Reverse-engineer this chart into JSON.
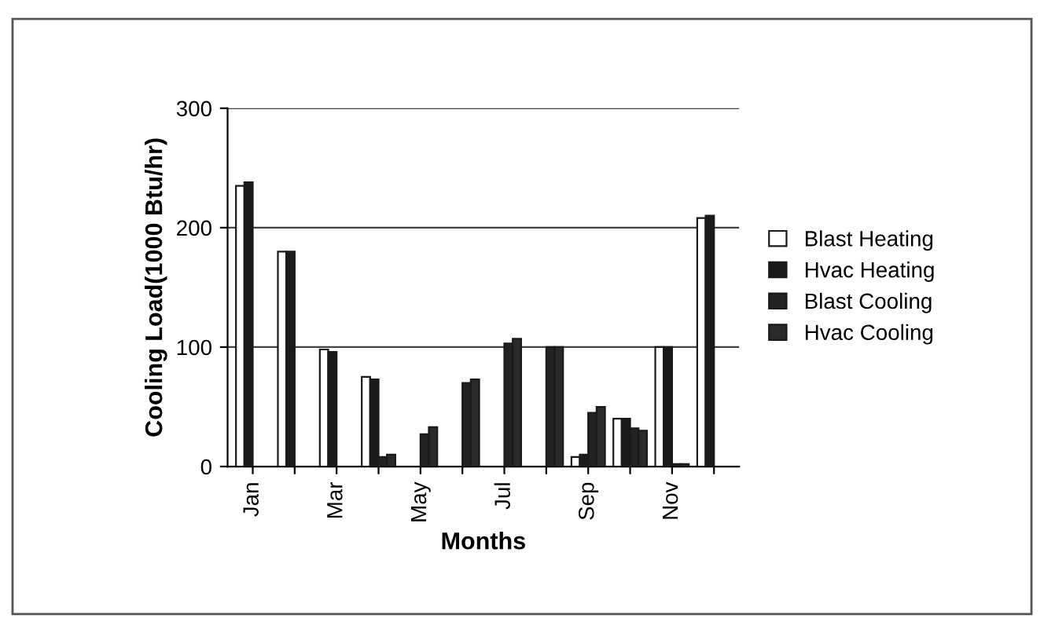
{
  "chart_data": {
    "type": "bar",
    "xlabel": "Months",
    "ylabel": "Cooling Load(1000 Btu/hr)",
    "categories": [
      "Jan",
      null,
      "Mar",
      null,
      "May",
      null,
      "Jul",
      null,
      "Sep",
      null,
      "Nov",
      null
    ],
    "series": [
      {
        "name": "Blast Heating",
        "color": "#ffffff",
        "values": [
          235,
          180,
          98,
          75,
          null,
          null,
          null,
          null,
          8,
          40,
          100,
          208
        ]
      },
      {
        "name": "Hvac Heating",
        "color": "#1a1a1a",
        "values": [
          238,
          180,
          96,
          73,
          null,
          null,
          null,
          null,
          10,
          40,
          100,
          210
        ]
      },
      {
        "name": "Blast Cooling",
        "color": "#222222",
        "values": [
          null,
          null,
          null,
          8,
          27,
          70,
          103,
          100,
          45,
          32,
          2,
          null
        ]
      },
      {
        "name": "Hvac Cooling",
        "color": "#2a2a2a",
        "values": [
          null,
          null,
          null,
          10,
          33,
          73,
          107,
          100,
          50,
          30,
          2,
          null
        ]
      }
    ],
    "ylim": [
      0,
      300
    ],
    "yticks": [
      0,
      100,
      200,
      300
    ],
    "grid": "y",
    "legend": "right"
  }
}
